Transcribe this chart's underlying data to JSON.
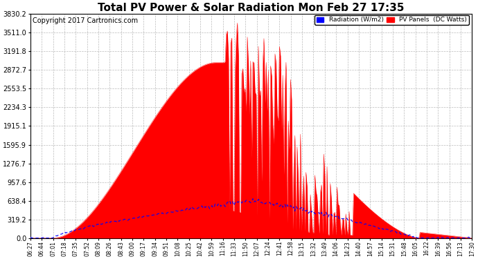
{
  "title": "Total PV Power & Solar Radiation Mon Feb 27 17:35",
  "copyright": "Copyright 2017 Cartronics.com",
  "legend_radiation": "Radiation (W/m2)",
  "legend_pv": "PV Panels  (DC Watts)",
  "yticks": [
    0.0,
    319.2,
    638.4,
    957.6,
    1276.7,
    1595.9,
    1915.1,
    2234.3,
    2553.5,
    2872.7,
    3191.8,
    3511.0,
    3830.2
  ],
  "ymax": 3830.2,
  "ymin": 0.0,
  "background_color": "#ffffff",
  "grid_color": "#bbbbbb",
  "pv_color": "#ff0000",
  "radiation_color": "#0000ff",
  "title_fontsize": 11,
  "copyright_fontsize": 7
}
